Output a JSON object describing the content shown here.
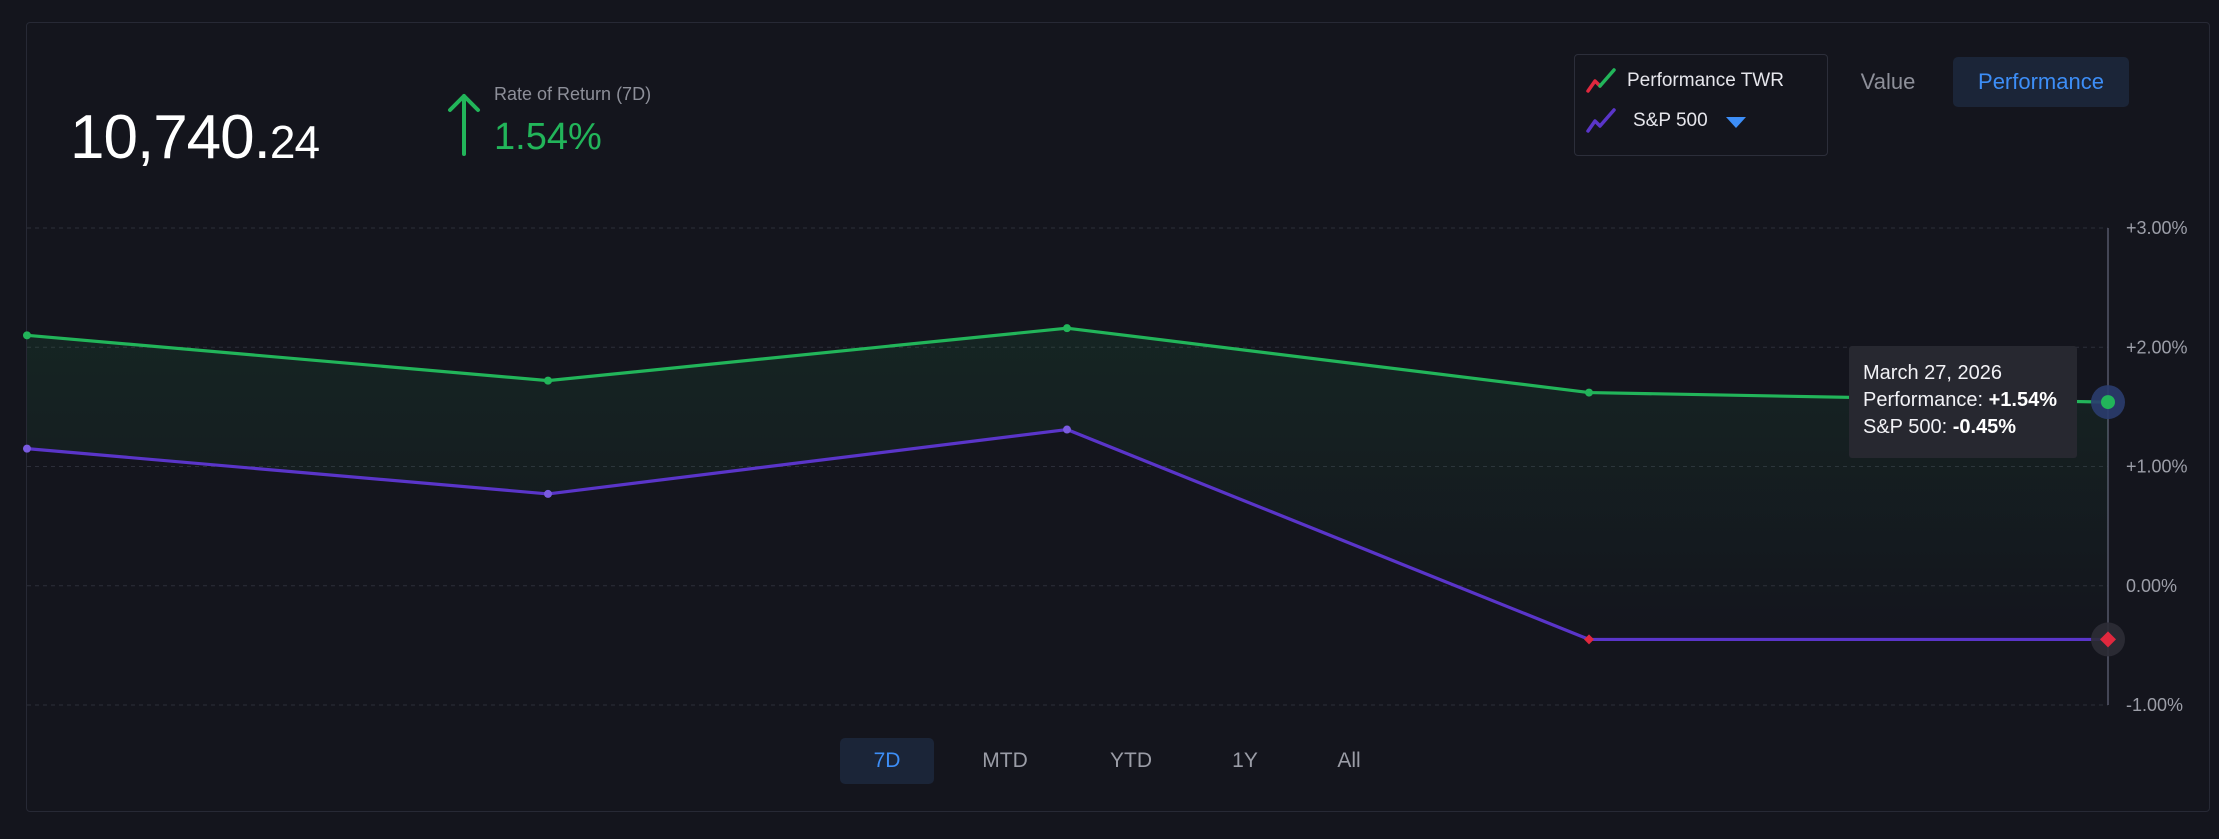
{
  "portfolio": {
    "value_int": "10,740.",
    "value_dec": "24"
  },
  "rate_of_return": {
    "label": "Rate of Return (7D)",
    "value": "1.54%",
    "direction": "up",
    "color": "#22b55a"
  },
  "legend": {
    "items": [
      {
        "label": "Performance TWR",
        "icon": "line-chart-red-green-icon"
      },
      {
        "label": "S&P 500",
        "icon": "line-chart-purple-icon",
        "dropdown": true
      }
    ]
  },
  "view_toggle": {
    "value_label": "Value",
    "performance_label": "Performance",
    "selected": "Performance"
  },
  "ranges": {
    "items": [
      "7D",
      "MTD",
      "YTD",
      "1Y",
      "All"
    ],
    "selected": "7D"
  },
  "tooltip": {
    "date": "March 27, 2026",
    "perf_label": "Performance: ",
    "perf_value": "+1.54%",
    "sp_label": "S&P 500: ",
    "sp_value": "-0.45%"
  },
  "colors": {
    "performance": "#22b55a",
    "sp500": "#5a35c9",
    "negative_marker": "#e0283e",
    "accent": "#3d8ef7",
    "background": "#14151d"
  },
  "chart_data": {
    "type": "line",
    "y_ticks": [
      "+3.00%",
      "+2.00%",
      "+1.00%",
      "0.00%",
      "-1.00%"
    ],
    "ylim": [
      -1,
      3
    ],
    "grid": true,
    "series": [
      {
        "name": "Performance TWR",
        "values": [
          2.1,
          1.72,
          2.16,
          1.62,
          1.54
        ]
      },
      {
        "name": "S&P 500",
        "values": [
          1.15,
          0.77,
          1.31,
          -0.45,
          -0.45
        ]
      }
    ]
  }
}
